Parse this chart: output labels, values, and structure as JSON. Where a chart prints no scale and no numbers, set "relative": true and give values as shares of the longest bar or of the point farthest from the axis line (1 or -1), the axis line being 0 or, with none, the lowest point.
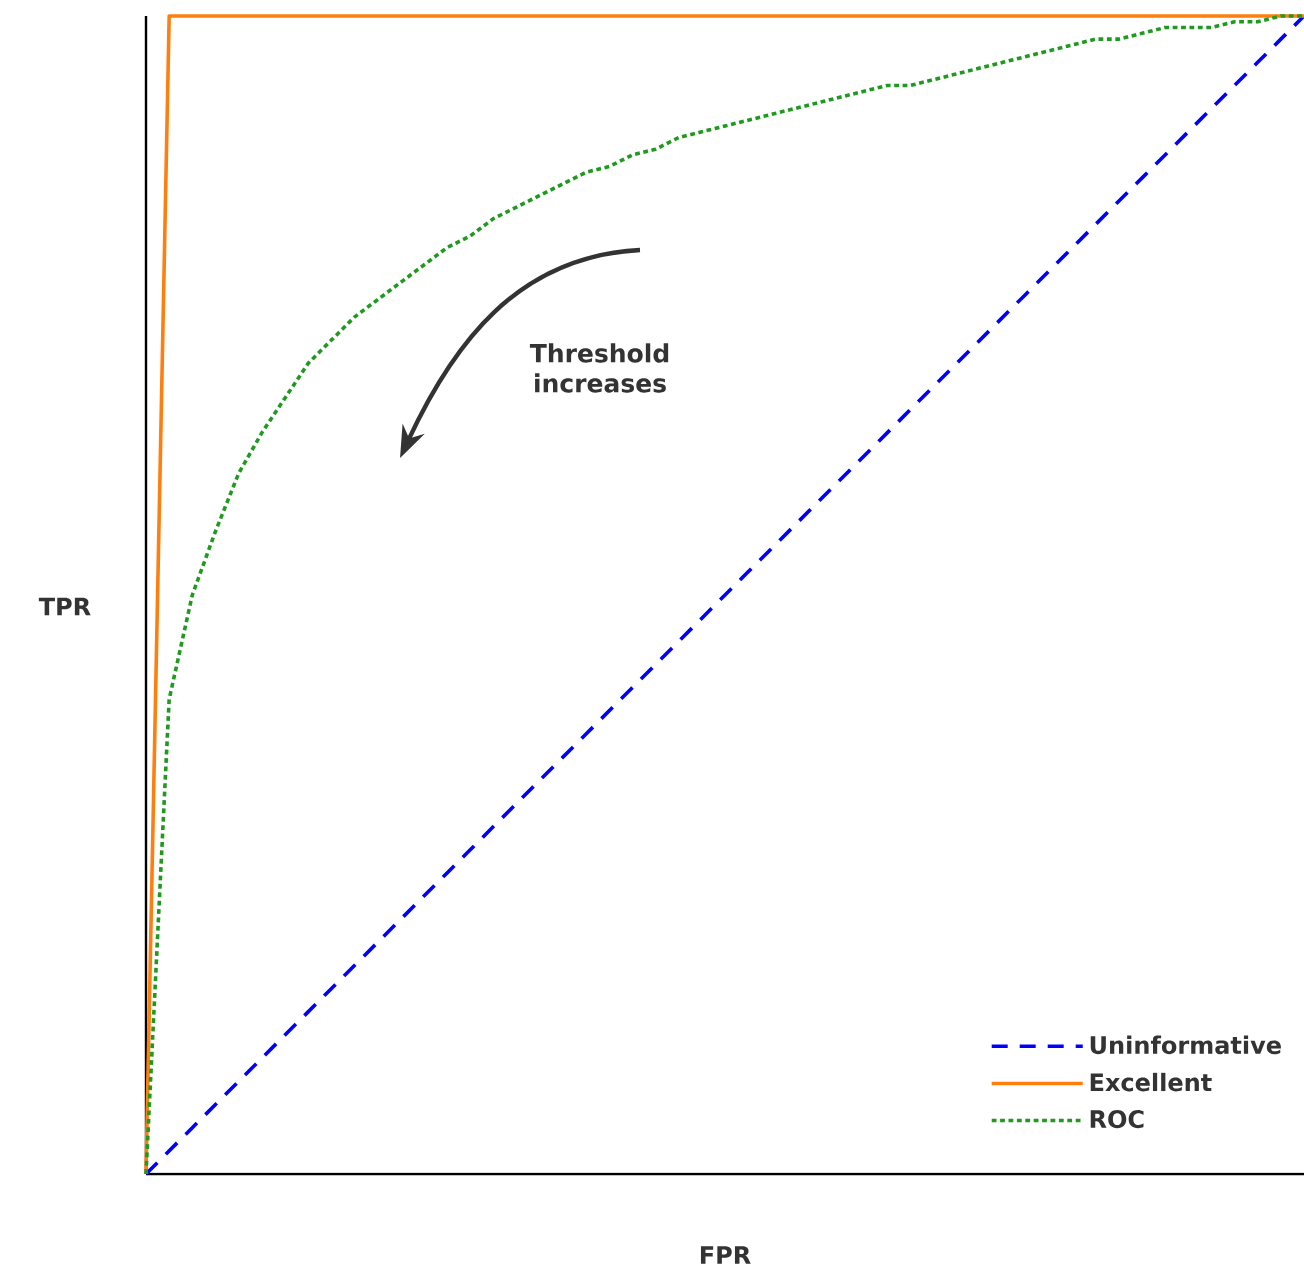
{
  "chart_data": {
    "type": "line",
    "relative": true,
    "xlabel": "FPR",
    "ylabel": "TPR",
    "legend": "bottom right",
    "annotations": [
      "Threshold increases"
    ],
    "categories": [
      null,
      null,
      null,
      null,
      null,
      null,
      null,
      null,
      null,
      null,
      null,
      null,
      null,
      null,
      null,
      null,
      null,
      null,
      null,
      null,
      null,
      null,
      null,
      null,
      null,
      null,
      null,
      null,
      null,
      null,
      null,
      null,
      null,
      null,
      null,
      null,
      null,
      null,
      null,
      null,
      null,
      null,
      null,
      null,
      null,
      null,
      null,
      null,
      null,
      null,
      null
    ],
    "series": [
      {
        "name": "Uninformative",
        "color": "#0000ff",
        "line_style": "dashed",
        "values": [
          0,
          0.02,
          0.04,
          0.06,
          0.08,
          0.1,
          0.12,
          0.14,
          0.16,
          0.18,
          0.2,
          0.22,
          0.24,
          0.26,
          0.28,
          0.3,
          0.32,
          0.34,
          0.36,
          0.38,
          0.4,
          0.42,
          0.44,
          0.46,
          0.48,
          0.5,
          0.52,
          0.54,
          0.56,
          0.58,
          0.6,
          0.62,
          0.64,
          0.66,
          0.68,
          0.7,
          0.72,
          0.74,
          0.76,
          0.78,
          0.8,
          0.82,
          0.84,
          0.86,
          0.88,
          0.9,
          0.92,
          0.94,
          0.96,
          0.98,
          1
        ]
      },
      {
        "name": "Excellent",
        "color": "#ff7f0e",
        "line_style": "solid",
        "values": [
          0,
          1,
          1,
          1,
          1,
          1,
          1,
          1,
          1,
          1,
          1,
          1,
          1,
          1,
          1,
          1,
          1,
          1,
          1,
          1,
          1,
          1,
          1,
          1,
          1,
          1,
          1,
          1,
          1,
          1,
          1,
          1,
          1,
          1,
          1,
          1,
          1,
          1,
          1,
          1,
          1,
          1,
          1,
          1,
          1,
          1,
          1,
          1,
          1,
          1,
          1
        ]
      },
      {
        "name": "ROC",
        "color": "#1f9a1f",
        "line_style": "dotted",
        "values": [
          0,
          0.41,
          0.5,
          0.555,
          0.605,
          0.64,
          0.67,
          0.7,
          0.72,
          0.74,
          0.755,
          0.77,
          0.785,
          0.8,
          0.81,
          0.825,
          0.835,
          0.845,
          0.855,
          0.865,
          0.87,
          0.88,
          0.885,
          0.895,
          0.9,
          0.905,
          0.91,
          0.915,
          0.92,
          0.925,
          0.93,
          0.935,
          0.94,
          0.94,
          0.945,
          0.95,
          0.955,
          0.96,
          0.965,
          0.97,
          0.975,
          0.98,
          0.98,
          0.985,
          0.99,
          0.99,
          0.99,
          0.995,
          0.995,
          1,
          1
        ]
      }
    ]
  }
}
